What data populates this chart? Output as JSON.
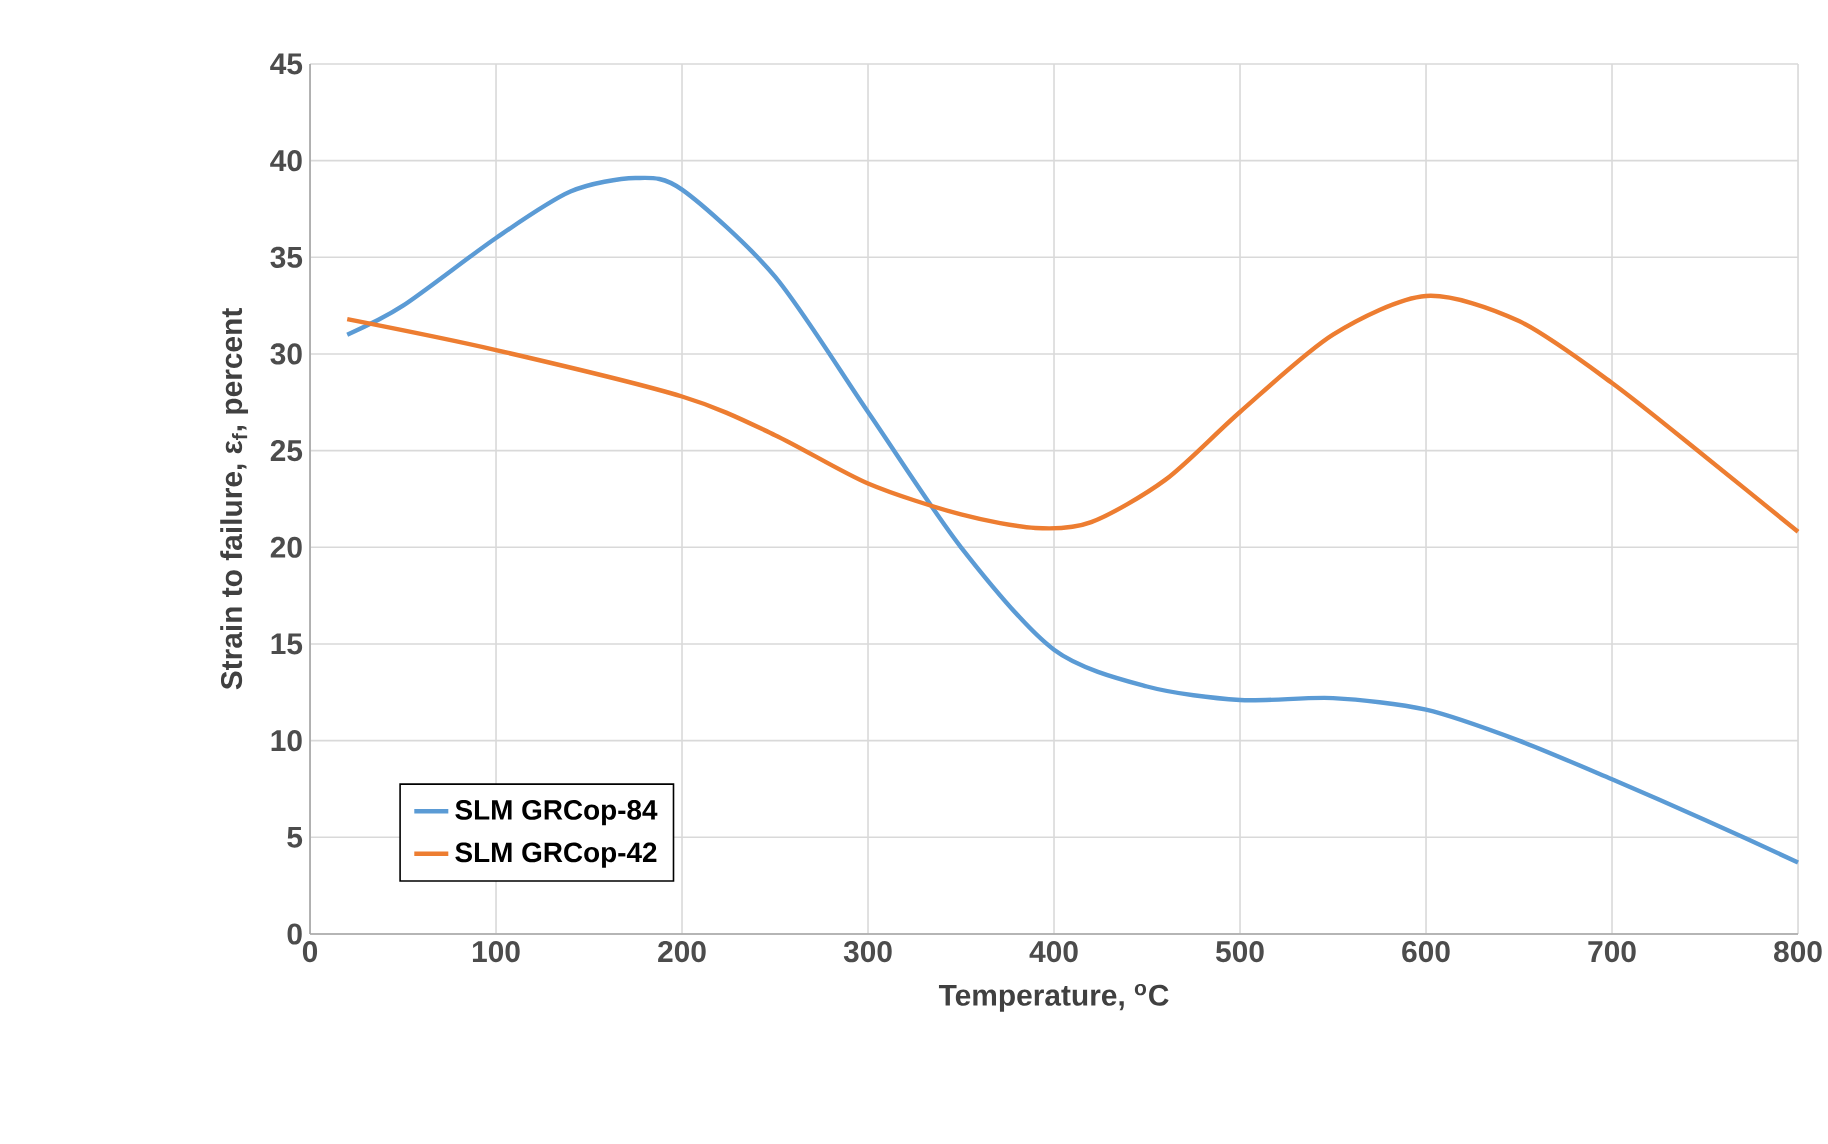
{
  "chart_data": {
    "type": "line",
    "xlabel": "Temperature, $^{o}$C",
    "ylabel": "Strain to failure, ε$_{f}$, percent",
    "xlim": [
      0,
      800
    ],
    "ylim": [
      0,
      45
    ],
    "xticks": [
      0,
      100,
      200,
      300,
      400,
      500,
      600,
      700,
      800
    ],
    "yticks": [
      0,
      5,
      10,
      15,
      20,
      25,
      30,
      35,
      40,
      45
    ],
    "grid": true,
    "legend": "bottom left",
    "marker": "none",
    "line_style": "solid",
    "series": [
      {
        "name": "SLM GRCop-84",
        "color": "#5b9bd5",
        "x": [
          20,
          50,
          100,
          140,
          175,
          200,
          250,
          300,
          350,
          400,
          450,
          500,
          550,
          600,
          650,
          700,
          750,
          800
        ],
        "values": [
          31,
          32.5,
          36,
          38.4,
          39.1,
          38.5,
          34,
          27,
          20,
          14.7,
          12.8,
          12.1,
          12.2,
          11.6,
          10,
          8,
          5.9,
          3.7
        ]
      },
      {
        "name": "SLM GRCop-42",
        "color": "#ed7d31",
        "x": [
          20,
          100,
          200,
          250,
          300,
          350,
          390,
          420,
          460,
          500,
          550,
          600,
          650,
          700,
          750,
          800
        ],
        "values": [
          31.8,
          30.2,
          27.8,
          25.8,
          23.3,
          21.7,
          21,
          21.3,
          23.5,
          27,
          31,
          33,
          31.7,
          28.5,
          24.7,
          20.8
        ]
      }
    ]
  }
}
